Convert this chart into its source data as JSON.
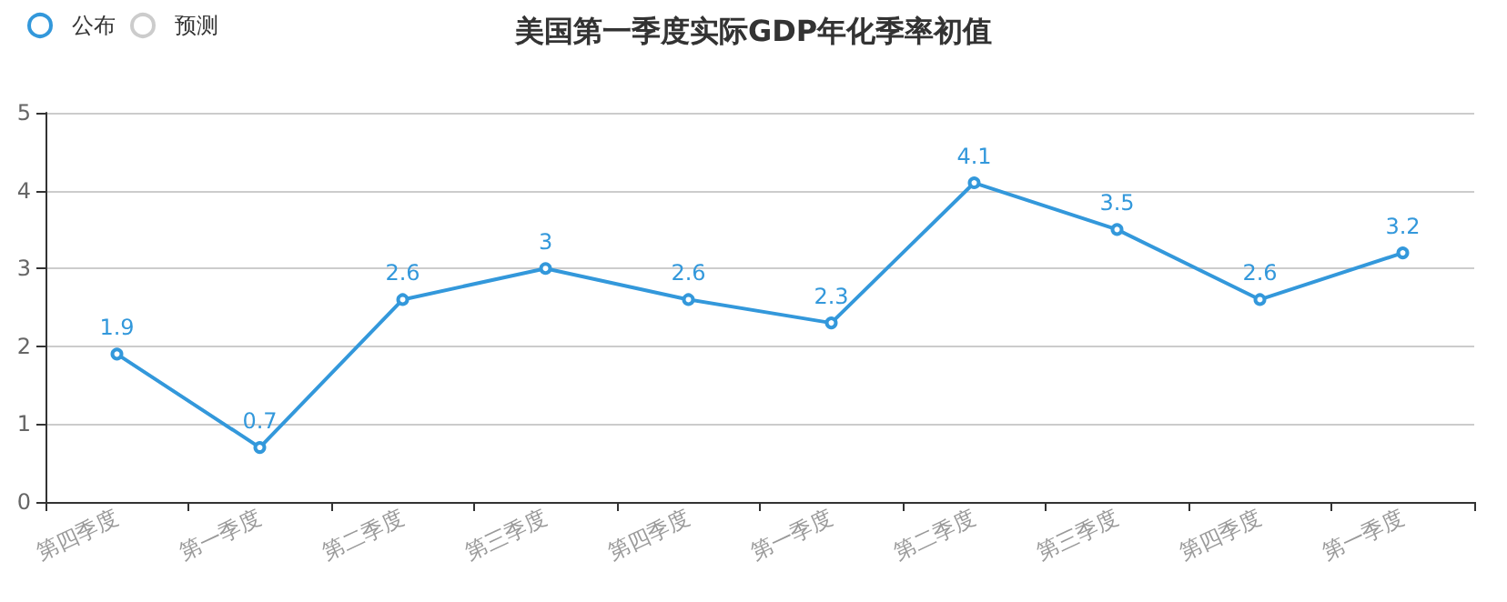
{
  "chart_data": {
    "type": "line",
    "title": "美国第一季度实际GDP年化季率初值",
    "categories": [
      "第四季度",
      "第一季度",
      "第二季度",
      "第三季度",
      "第四季度",
      "第一季度",
      "第二季度",
      "第三季度",
      "第四季度",
      "第一季度"
    ],
    "series": [
      {
        "name": "公布",
        "color": "#3398db",
        "values": [
          1.9,
          0.7,
          2.6,
          3,
          2.6,
          2.3,
          4.1,
          3.5,
          2.6,
          3.2
        ]
      },
      {
        "name": "预测",
        "color": "#cccccc",
        "values": [
          null,
          null,
          null,
          null,
          null,
          null,
          null,
          null,
          null,
          null
        ]
      }
    ],
    "ylim": [
      0,
      5
    ],
    "yticks": [
      0,
      1,
      2,
      3,
      4,
      5
    ],
    "grid": "y",
    "legend": "top left",
    "marker": "circle",
    "line_style": "solid",
    "data_labels": true
  }
}
